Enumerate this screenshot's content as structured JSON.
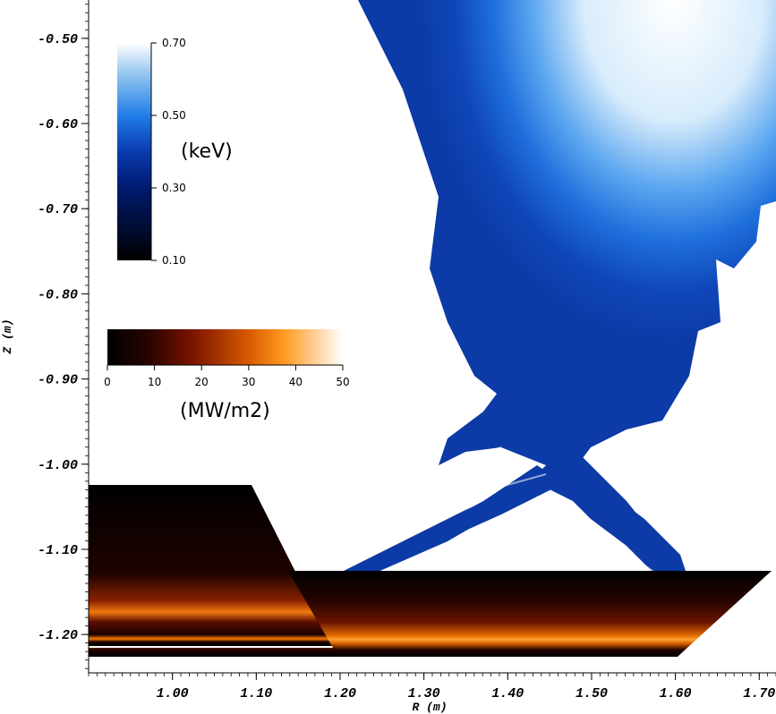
{
  "chart_data": {
    "type": "heatmap",
    "title": "",
    "xlabel": "R (m)",
    "ylabel": "Z (m)",
    "xlim": [
      0.9,
      1.72
    ],
    "ylim": [
      -1.245,
      -0.455
    ],
    "x_ticks": [
      "1.00",
      "1.10",
      "1.20",
      "1.30",
      "1.40",
      "1.50",
      "1.60",
      "1.70"
    ],
    "x_tick_values": [
      1.0,
      1.1,
      1.2,
      1.3,
      1.4,
      1.5,
      1.6,
      1.7
    ],
    "y_ticks": [
      "-0.50",
      "-0.60",
      "-0.70",
      "-0.80",
      "-0.90",
      "-1.00",
      "-1.10",
      "-1.20"
    ],
    "y_tick_values": [
      -0.5,
      -0.6,
      -0.7,
      -0.8,
      -0.9,
      -1.0,
      -1.1,
      -1.2
    ],
    "colorbars": [
      {
        "name": "energy",
        "title": "(keV)",
        "orientation": "vertical",
        "range": [
          0.1,
          0.7
        ],
        "ticks": [
          "0.70",
          "0.50",
          "0.30",
          "0.10"
        ],
        "tick_values": [
          0.7,
          0.5,
          0.3,
          0.1
        ],
        "colors": [
          "#000000",
          "#001a6e",
          "#0a3bb0",
          "#1f7be6",
          "#8fc3f0",
          "#ffffff"
        ]
      },
      {
        "name": "heat-flux",
        "title": "(MW/m2)",
        "orientation": "horizontal",
        "range": [
          0,
          50
        ],
        "ticks": [
          "0",
          "10",
          "20",
          "30",
          "40",
          "50"
        ],
        "tick_values": [
          0,
          10,
          20,
          30,
          40,
          50
        ],
        "colors": [
          "#000000",
          "#2a0400",
          "#7a1300",
          "#d85a00",
          "#ff9a20",
          "#ffffff"
        ]
      }
    ],
    "heat_flux_surfaces": [
      {
        "name": "left-divertor-plate",
        "polygon_data": [
          [
            0.9,
            -1.033
          ],
          [
            1.095,
            -1.033
          ],
          [
            1.195,
            -1.225
          ],
          [
            0.9,
            -1.225
          ]
        ],
        "bands": [
          {
            "z": -1.195,
            "value": 24
          },
          {
            "z": -1.222,
            "value": 28
          }
        ]
      },
      {
        "name": "right-divertor-plate",
        "polygon_data": [
          [
            1.145,
            -1.137
          ],
          [
            1.72,
            -1.137
          ],
          [
            1.615,
            -1.243
          ],
          [
            0.9,
            -1.243
          ],
          [
            0.9,
            -1.228
          ],
          [
            1.195,
            -1.228
          ]
        ],
        "bands": [
          {
            "z": -1.222,
            "value": 40
          }
        ]
      }
    ],
    "particle_region": {
      "description_value_range_keV": [
        0.25,
        0.7
      ]
    }
  }
}
